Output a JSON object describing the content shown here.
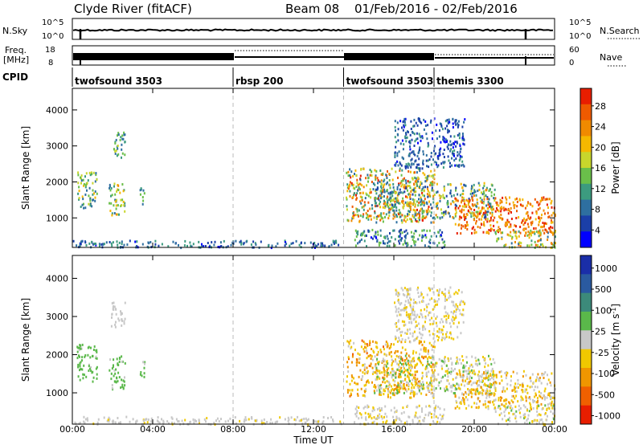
{
  "header": {
    "station": "Clyde River (fitACF)",
    "beam": "Beam 08",
    "date_range": "01/Feb/2016 - 02/Feb/2016"
  },
  "strips": {
    "sky_label": "N.Sky",
    "sky_tick_top": "10^5",
    "sky_tick_bottom": "10^0",
    "sky_right_label": "N.Search",
    "sky_right_tick_top": "10^5",
    "sky_right_tick_bottom": "10^0",
    "freq_label_1": "Freq.",
    "freq_label_2": "[MHz]",
    "freq_tick_top": "18",
    "freq_tick_bottom": "8",
    "nave_label": "Nave",
    "nave_tick_top": "60",
    "nave_tick_bottom": "0",
    "cpid_label": "CPID",
    "cpid_segments": [
      {
        "label": "twofsound 3503",
        "start_h": 0.0,
        "end_h": 8.0
      },
      {
        "label": "rbsp 200",
        "start_h": 8.0,
        "end_h": 13.5
      },
      {
        "label": "twofsound 3503",
        "start_h": 13.5,
        "end_h": 18.0
      },
      {
        "label": "themis 3300",
        "start_h": 18.0,
        "end_h": 24.0
      }
    ]
  },
  "colors": {
    "power": [
      "#0000ff",
      "#1b3fa8",
      "#2e6fa0",
      "#3c9b7f",
      "#6abf4a",
      "#c8d62c",
      "#f5b800",
      "#f08a00",
      "#ee5a00",
      "#e81e00"
    ],
    "velocity": [
      "#1a2ea8",
      "#2a5aa0",
      "#3c8a7a",
      "#5ab84a",
      "#c8c8c8",
      "#f0c800",
      "#f09600",
      "#f06000",
      "#e81e00"
    ]
  },
  "chart_data": [
    {
      "type": "heatmap",
      "title": "",
      "xlabel": "",
      "ylabel": "Slant Range [km]",
      "xlim": [
        0,
        24
      ],
      "ylim": [
        180,
        4600
      ],
      "x_ticks": [
        0,
        4,
        8,
        12,
        16,
        20,
        24
      ],
      "x_tick_labels": [
        "00:00",
        "04:00",
        "08:00",
        "12:00",
        "16:00",
        "20:00",
        "00:00"
      ],
      "y_ticks": [
        1000,
        2000,
        3000,
        4000
      ],
      "y_tick_labels": [
        "1000",
        "2000",
        "3000",
        "4000"
      ],
      "colorbar": {
        "label": "Power [dB]",
        "tick_labels": [
          "4",
          "8",
          "12",
          "16",
          "20",
          "24",
          "28"
        ],
        "range": [
          0,
          30
        ]
      },
      "regions": [
        {
          "t0": 0.2,
          "t1": 1.2,
          "r0": 1300,
          "r1": 2300,
          "v0": 6,
          "v1": 20
        },
        {
          "t0": 1.8,
          "t1": 2.6,
          "r0": 1100,
          "r1": 2000,
          "v0": 6,
          "v1": 22
        },
        {
          "t0": 3.3,
          "t1": 3.6,
          "r0": 1400,
          "r1": 1900,
          "v0": 6,
          "v1": 14
        },
        {
          "t0": 1.9,
          "t1": 2.6,
          "r0": 2700,
          "r1": 3400,
          "v0": 6,
          "v1": 16
        },
        {
          "t0": 0.0,
          "t1": 13.5,
          "r0": 200,
          "r1": 400,
          "v0": 2,
          "v1": 12
        },
        {
          "t0": 13.6,
          "t1": 18.0,
          "r0": 900,
          "r1": 2400,
          "v0": 6,
          "v1": 28
        },
        {
          "t0": 14.0,
          "t1": 18.5,
          "r0": 200,
          "r1": 700,
          "v0": 2,
          "v1": 14
        },
        {
          "t0": 15.0,
          "t1": 21.0,
          "r0": 1000,
          "r1": 2000,
          "v0": 4,
          "v1": 24
        },
        {
          "t0": 19.0,
          "t1": 24.0,
          "r0": 600,
          "r1": 1600,
          "v0": 18,
          "v1": 30
        },
        {
          "t0": 21.0,
          "t1": 24.0,
          "r0": 200,
          "r1": 700,
          "v0": 8,
          "v1": 26
        },
        {
          "t0": 16.0,
          "t1": 19.5,
          "r0": 2400,
          "r1": 3800,
          "v0": 2,
          "v1": 10
        }
      ]
    },
    {
      "type": "heatmap",
      "title": "",
      "xlabel": "Time UT",
      "ylabel": "Slant Range [km]",
      "xlim": [
        0,
        24
      ],
      "ylim": [
        180,
        4600
      ],
      "x_ticks": [
        0,
        4,
        8,
        12,
        16,
        20,
        24
      ],
      "x_tick_labels": [
        "00:00",
        "04:00",
        "08:00",
        "12:00",
        "16:00",
        "20:00",
        "00:00"
      ],
      "y_ticks": [
        1000,
        2000,
        3000,
        4000
      ],
      "y_tick_labels": [
        "1000",
        "2000",
        "3000",
        "4000"
      ],
      "colorbar": {
        "label": "Velocity [m s^-1]",
        "tick_labels": [
          "1000",
          "500",
          "100",
          "25",
          "-25",
          "-100",
          "-500",
          "-1000"
        ],
        "range": [
          -1200,
          1200
        ]
      },
      "regions": [
        {
          "t0": 0.2,
          "t1": 1.2,
          "r0": 1300,
          "r1": 2300,
          "v0": 100,
          "v1": 400
        },
        {
          "t0": 1.8,
          "t1": 2.6,
          "r0": 1100,
          "r1": 2000,
          "v0": 100,
          "v1": 400
        },
        {
          "t0": 3.3,
          "t1": 3.6,
          "r0": 1400,
          "r1": 1900,
          "v0": 100,
          "v1": 300
        },
        {
          "t0": 1.9,
          "t1": 2.6,
          "r0": 2700,
          "r1": 3400,
          "v0": 20,
          "v1": 120
        },
        {
          "t0": 0.0,
          "t1": 13.5,
          "r0": 200,
          "r1": 400,
          "v0": -150,
          "v1": 30
        },
        {
          "t0": 13.6,
          "t1": 18.0,
          "r0": 900,
          "r1": 2400,
          "v0": -700,
          "v1": -80
        },
        {
          "t0": 14.0,
          "t1": 18.5,
          "r0": 200,
          "r1": 700,
          "v0": -200,
          "v1": 30
        },
        {
          "t0": 15.0,
          "t1": 21.0,
          "r0": 1000,
          "r1": 2000,
          "v0": -300,
          "v1": 300
        },
        {
          "t0": 19.0,
          "t1": 24.0,
          "r0": 600,
          "r1": 1600,
          "v0": -600,
          "v1": 100
        },
        {
          "t0": 21.0,
          "t1": 24.0,
          "r0": 200,
          "r1": 700,
          "v0": -300,
          "v1": 200
        },
        {
          "t0": 16.0,
          "t1": 19.5,
          "r0": 2400,
          "r1": 3800,
          "v0": -300,
          "v1": 100
        }
      ]
    }
  ]
}
